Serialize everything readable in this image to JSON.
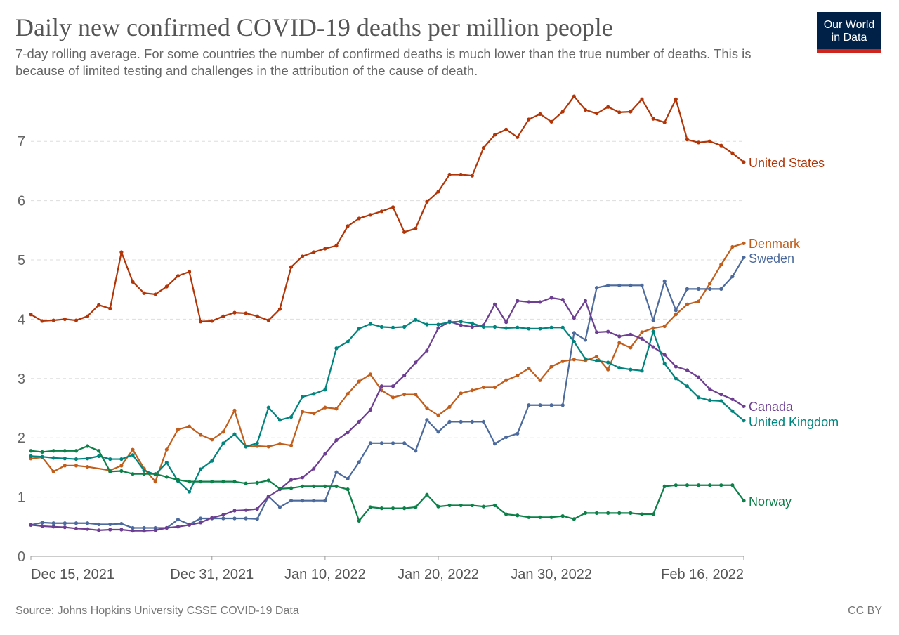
{
  "title": "Daily new confirmed COVID-19 deaths per million people",
  "subtitle": "7-day rolling average. For some countries the number of confirmed deaths is much lower than the true number of deaths. This is because of limited testing and challenges in the attribution of the cause of death.",
  "logo": {
    "line1": "Our World",
    "line2": "in Data"
  },
  "source": "Source: Johns Hopkins University CSSE COVID-19 Data",
  "license": "CC BY",
  "chart_data": {
    "type": "line",
    "x_start": "2021-12-15",
    "x_end": "2022-02-16",
    "x_tick_labels": [
      {
        "date": "2021-12-15",
        "label": "Dec 15, 2021"
      },
      {
        "date": "2021-12-31",
        "label": "Dec 31, 2021"
      },
      {
        "date": "2022-01-10",
        "label": "Jan 10, 2022"
      },
      {
        "date": "2022-01-20",
        "label": "Jan 20, 2022"
      },
      {
        "date": "2022-01-30",
        "label": "Jan 30, 2022"
      },
      {
        "date": "2022-02-16",
        "label": "Feb 16, 2022"
      }
    ],
    "y_ticks": [
      "0",
      "1",
      "2",
      "3",
      "4",
      "5",
      "6",
      "7"
    ],
    "ylim": [
      0,
      7.8
    ],
    "grid": "horizontal dashed",
    "legend": "inline labels at right end",
    "series": [
      {
        "name": "United States",
        "color": "#B13507",
        "values": [
          4.08,
          3.97,
          3.98,
          4.0,
          3.98,
          4.05,
          4.24,
          4.18,
          5.13,
          4.63,
          4.44,
          4.42,
          4.55,
          4.73,
          4.8,
          3.96,
          3.97,
          4.05,
          4.11,
          4.1,
          4.05,
          3.98,
          4.17,
          4.88,
          5.06,
          5.13,
          5.19,
          5.24,
          5.57,
          5.7,
          5.76,
          5.82,
          5.89,
          5.47,
          5.53,
          5.98,
          6.15,
          6.44,
          6.44,
          6.42,
          6.89,
          7.11,
          7.2,
          7.07,
          7.37,
          7.46,
          7.33,
          7.5,
          7.76,
          7.53,
          7.47,
          7.58,
          7.49,
          7.5,
          7.71,
          7.38,
          7.32,
          7.71,
          7.03,
          6.98,
          7.0,
          6.93,
          6.8,
          6.65
        ]
      },
      {
        "name": "Denmark",
        "color": "#C15E1B",
        "values": [
          1.65,
          1.67,
          1.43,
          1.53,
          1.53,
          1.51,
          null,
          1.45,
          1.53,
          1.8,
          1.48,
          1.26,
          1.8,
          2.14,
          2.19,
          2.05,
          1.97,
          2.1,
          2.46,
          1.85,
          1.86,
          1.85,
          1.9,
          1.87,
          2.44,
          2.41,
          2.51,
          2.49,
          2.74,
          2.95,
          3.07,
          2.8,
          2.68,
          2.73,
          2.73,
          2.5,
          2.38,
          2.52,
          2.75,
          2.8,
          2.85,
          2.85,
          2.97,
          3.05,
          3.17,
          2.97,
          3.2,
          3.29,
          3.32,
          3.3,
          3.37,
          3.15,
          3.6,
          3.52,
          3.78,
          3.85,
          3.88,
          4.08,
          4.25,
          4.3,
          4.6,
          4.92,
          5.22,
          5.28
        ]
      },
      {
        "name": "Sweden",
        "color": "#4C6A9C",
        "values": [
          0.53,
          0.57,
          0.56,
          0.56,
          0.56,
          0.56,
          0.54,
          0.54,
          0.55,
          0.48,
          0.48,
          0.48,
          0.48,
          0.62,
          0.54,
          0.64,
          0.64,
          0.64,
          0.64,
          0.64,
          0.63,
          1.01,
          0.83,
          0.94,
          0.94,
          0.94,
          0.94,
          1.42,
          1.31,
          1.59,
          1.91,
          1.91,
          1.91,
          1.91,
          1.78,
          2.3,
          2.1,
          2.27,
          2.27,
          2.27,
          2.27,
          1.9,
          2.01,
          2.07,
          2.55,
          2.55,
          2.55,
          2.55,
          3.77,
          3.65,
          4.53,
          4.57,
          4.57,
          4.57,
          4.57,
          3.98,
          4.64,
          4.15,
          4.51,
          4.51,
          4.51,
          4.51,
          4.72,
          5.04
        ]
      },
      {
        "name": "Canada",
        "color": "#6D3E91",
        "values": [
          0.53,
          0.51,
          0.5,
          0.49,
          0.47,
          0.46,
          0.44,
          0.45,
          0.45,
          0.43,
          0.43,
          0.44,
          0.48,
          0.5,
          0.53,
          0.57,
          0.65,
          0.7,
          0.77,
          0.78,
          0.8,
          1.01,
          1.13,
          1.29,
          1.33,
          1.48,
          1.73,
          1.96,
          2.09,
          2.27,
          2.47,
          2.87,
          2.87,
          3.05,
          3.27,
          3.47,
          3.85,
          3.96,
          3.9,
          3.87,
          3.9,
          4.25,
          3.95,
          4.31,
          4.29,
          4.29,
          4.36,
          4.33,
          4.02,
          4.31,
          3.78,
          3.79,
          3.71,
          3.74,
          3.67,
          3.53,
          3.4,
          3.2,
          3.14,
          3.02,
          2.82,
          2.73,
          2.65,
          2.53
        ]
      },
      {
        "name": "United Kingdom",
        "color": "#00847E",
        "values": [
          1.69,
          1.68,
          1.66,
          1.65,
          1.64,
          1.65,
          1.69,
          1.64,
          1.64,
          1.71,
          1.45,
          1.38,
          1.58,
          1.27,
          1.09,
          1.47,
          1.61,
          1.91,
          2.06,
          1.85,
          1.91,
          2.51,
          2.3,
          2.35,
          2.69,
          2.74,
          2.81,
          3.51,
          3.62,
          3.84,
          3.92,
          3.87,
          3.86,
          3.87,
          3.99,
          3.91,
          3.91,
          3.95,
          3.96,
          3.93,
          3.87,
          3.87,
          3.85,
          3.86,
          3.84,
          3.84,
          3.86,
          3.86,
          3.62,
          3.33,
          3.3,
          3.27,
          3.18,
          3.15,
          3.13,
          3.79,
          3.25,
          3.0,
          2.87,
          2.68,
          2.63,
          2.62,
          2.45,
          2.29
        ]
      },
      {
        "name": "Norway",
        "color": "#0C8048",
        "values": [
          1.78,
          1.76,
          1.78,
          1.78,
          1.78,
          1.86,
          1.78,
          1.43,
          1.44,
          1.39,
          1.39,
          1.39,
          1.34,
          1.29,
          1.26,
          1.26,
          1.26,
          1.26,
          1.26,
          1.23,
          1.24,
          1.28,
          1.14,
          1.15,
          1.18,
          1.18,
          1.18,
          1.18,
          1.13,
          0.6,
          0.83,
          0.81,
          0.81,
          0.81,
          0.83,
          1.04,
          0.84,
          0.86,
          0.86,
          0.86,
          0.84,
          0.86,
          0.71,
          0.69,
          0.66,
          0.66,
          0.66,
          0.68,
          0.63,
          0.73,
          0.73,
          0.73,
          0.73,
          0.73,
          0.71,
          0.71,
          1.18,
          1.2,
          1.2,
          1.2,
          1.2,
          1.2,
          1.2,
          0.94
        ]
      }
    ]
  }
}
